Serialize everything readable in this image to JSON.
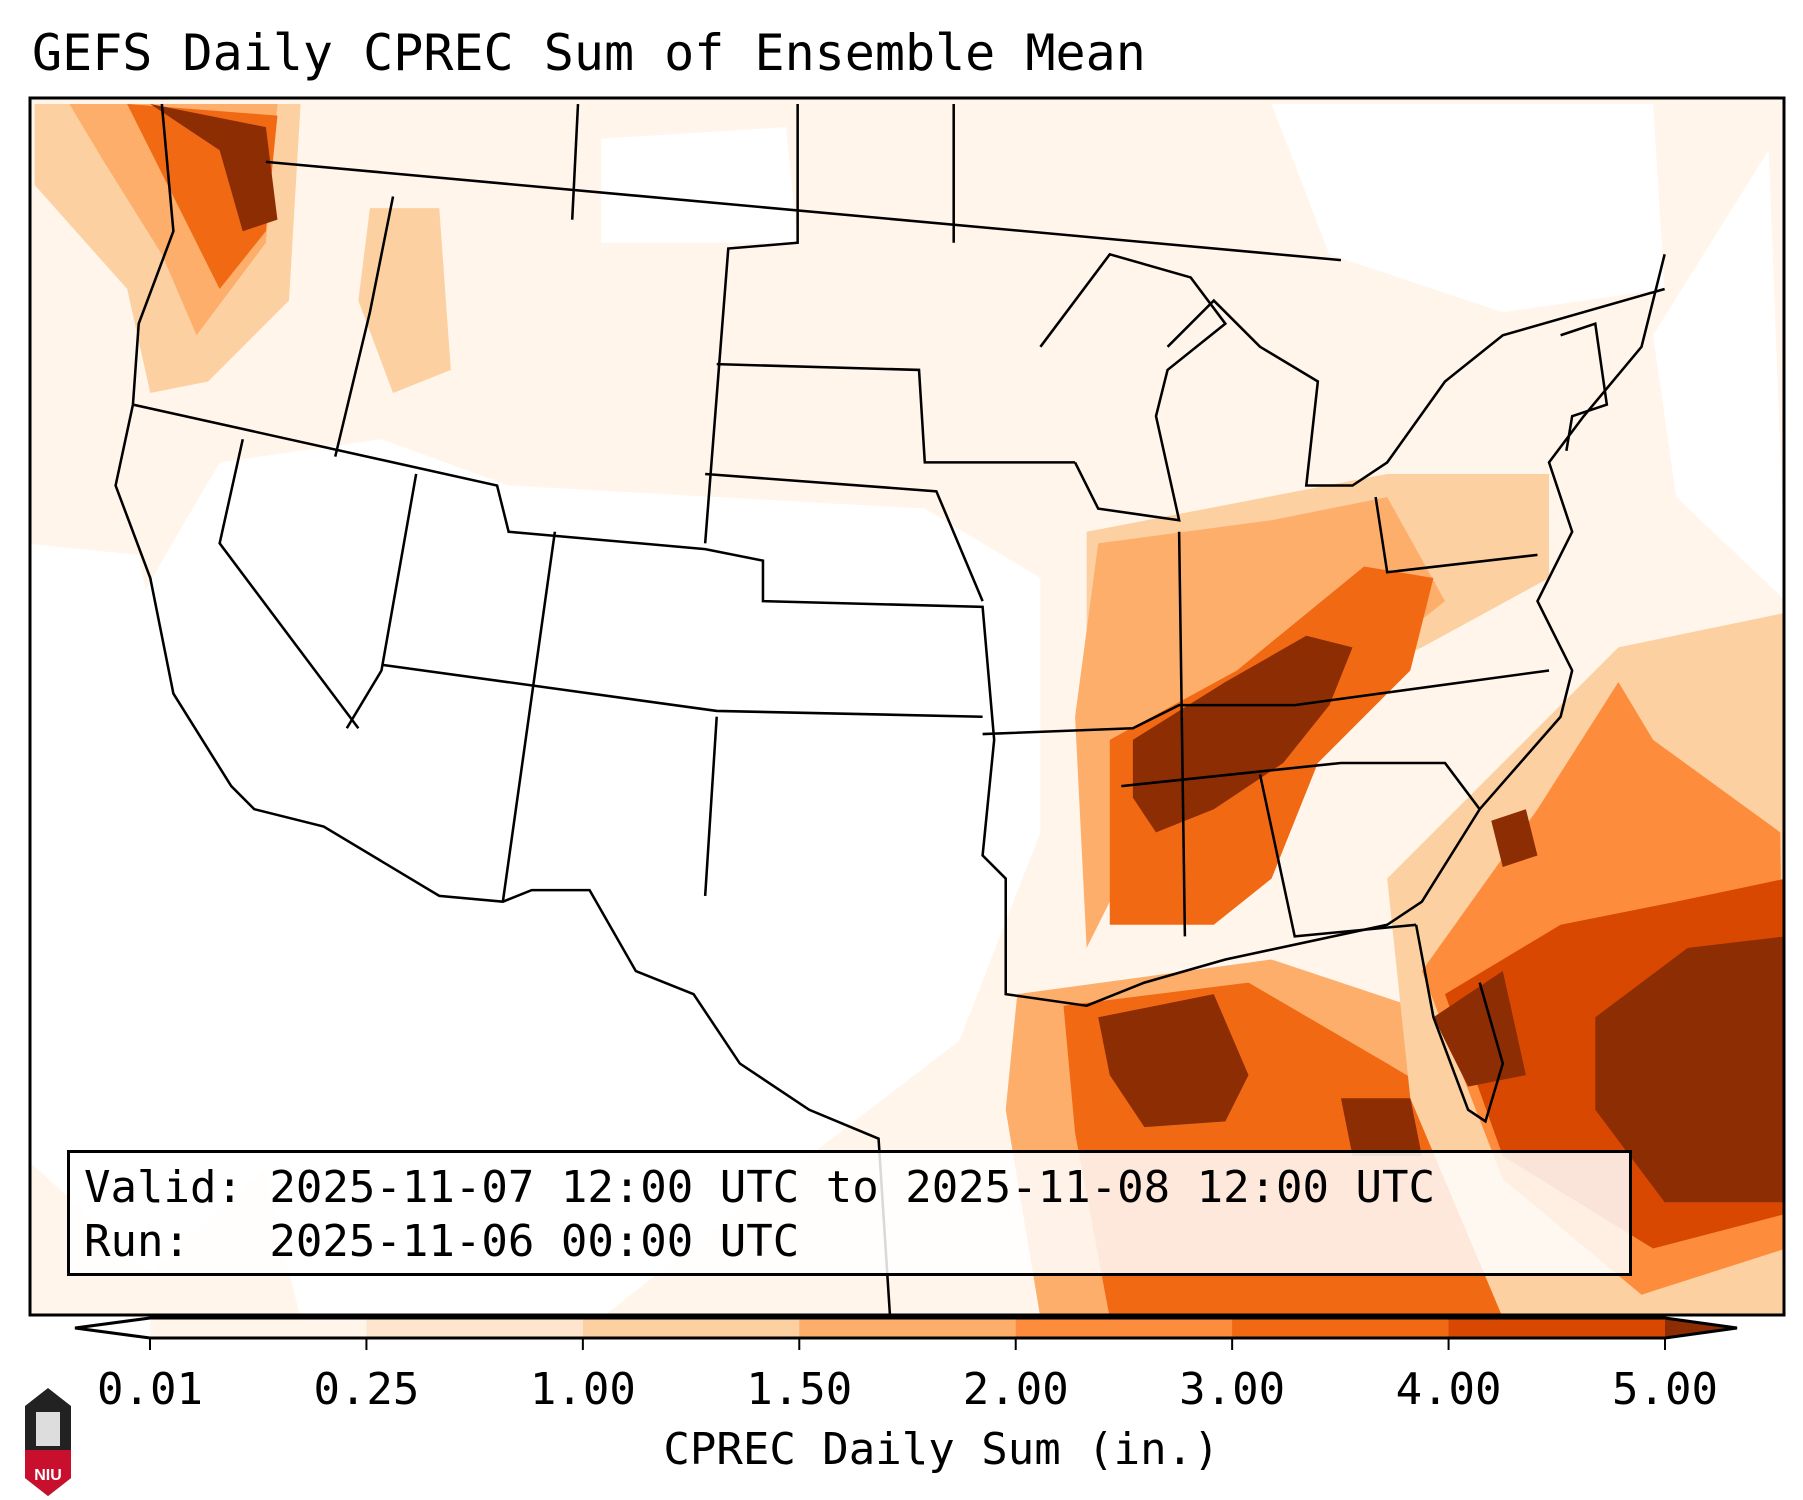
{
  "title": "GEFS Daily CPREC Sum of Ensemble Mean",
  "info": {
    "valid": "Valid: 2025-11-07 12:00 UTC to 2025-11-08 12:00 UTC",
    "run": "Run:   2025-11-06 00:00 UTC"
  },
  "logo_text": "NIU",
  "chart_data": {
    "type": "heatmap",
    "title": "GEFS Daily CPREC Sum of Ensemble Mean",
    "colorbar": {
      "label": "CPREC Daily Sum (in.)",
      "ticks": [
        "0.01",
        "0.25",
        "1.00",
        "1.50",
        "2.00",
        "3.00",
        "4.00",
        "5.00"
      ],
      "levels": [
        0.01,
        0.25,
        1.0,
        1.5,
        2.0,
        3.0,
        4.0,
        5.0
      ],
      "colors": [
        "#fff5eb",
        "#fee6ce",
        "#fdd0a2",
        "#fdae6b",
        "#fd8d3c",
        "#f16913",
        "#d94801",
        "#8c2d04"
      ],
      "extend": "both"
    },
    "regions_heavy": [
      "Pacific Northwest",
      "Tennessee/Ohio Valley",
      "Central Gulf Coast",
      "Southeast Atlantic coast",
      "Bahamas / western Atlantic"
    ]
  }
}
